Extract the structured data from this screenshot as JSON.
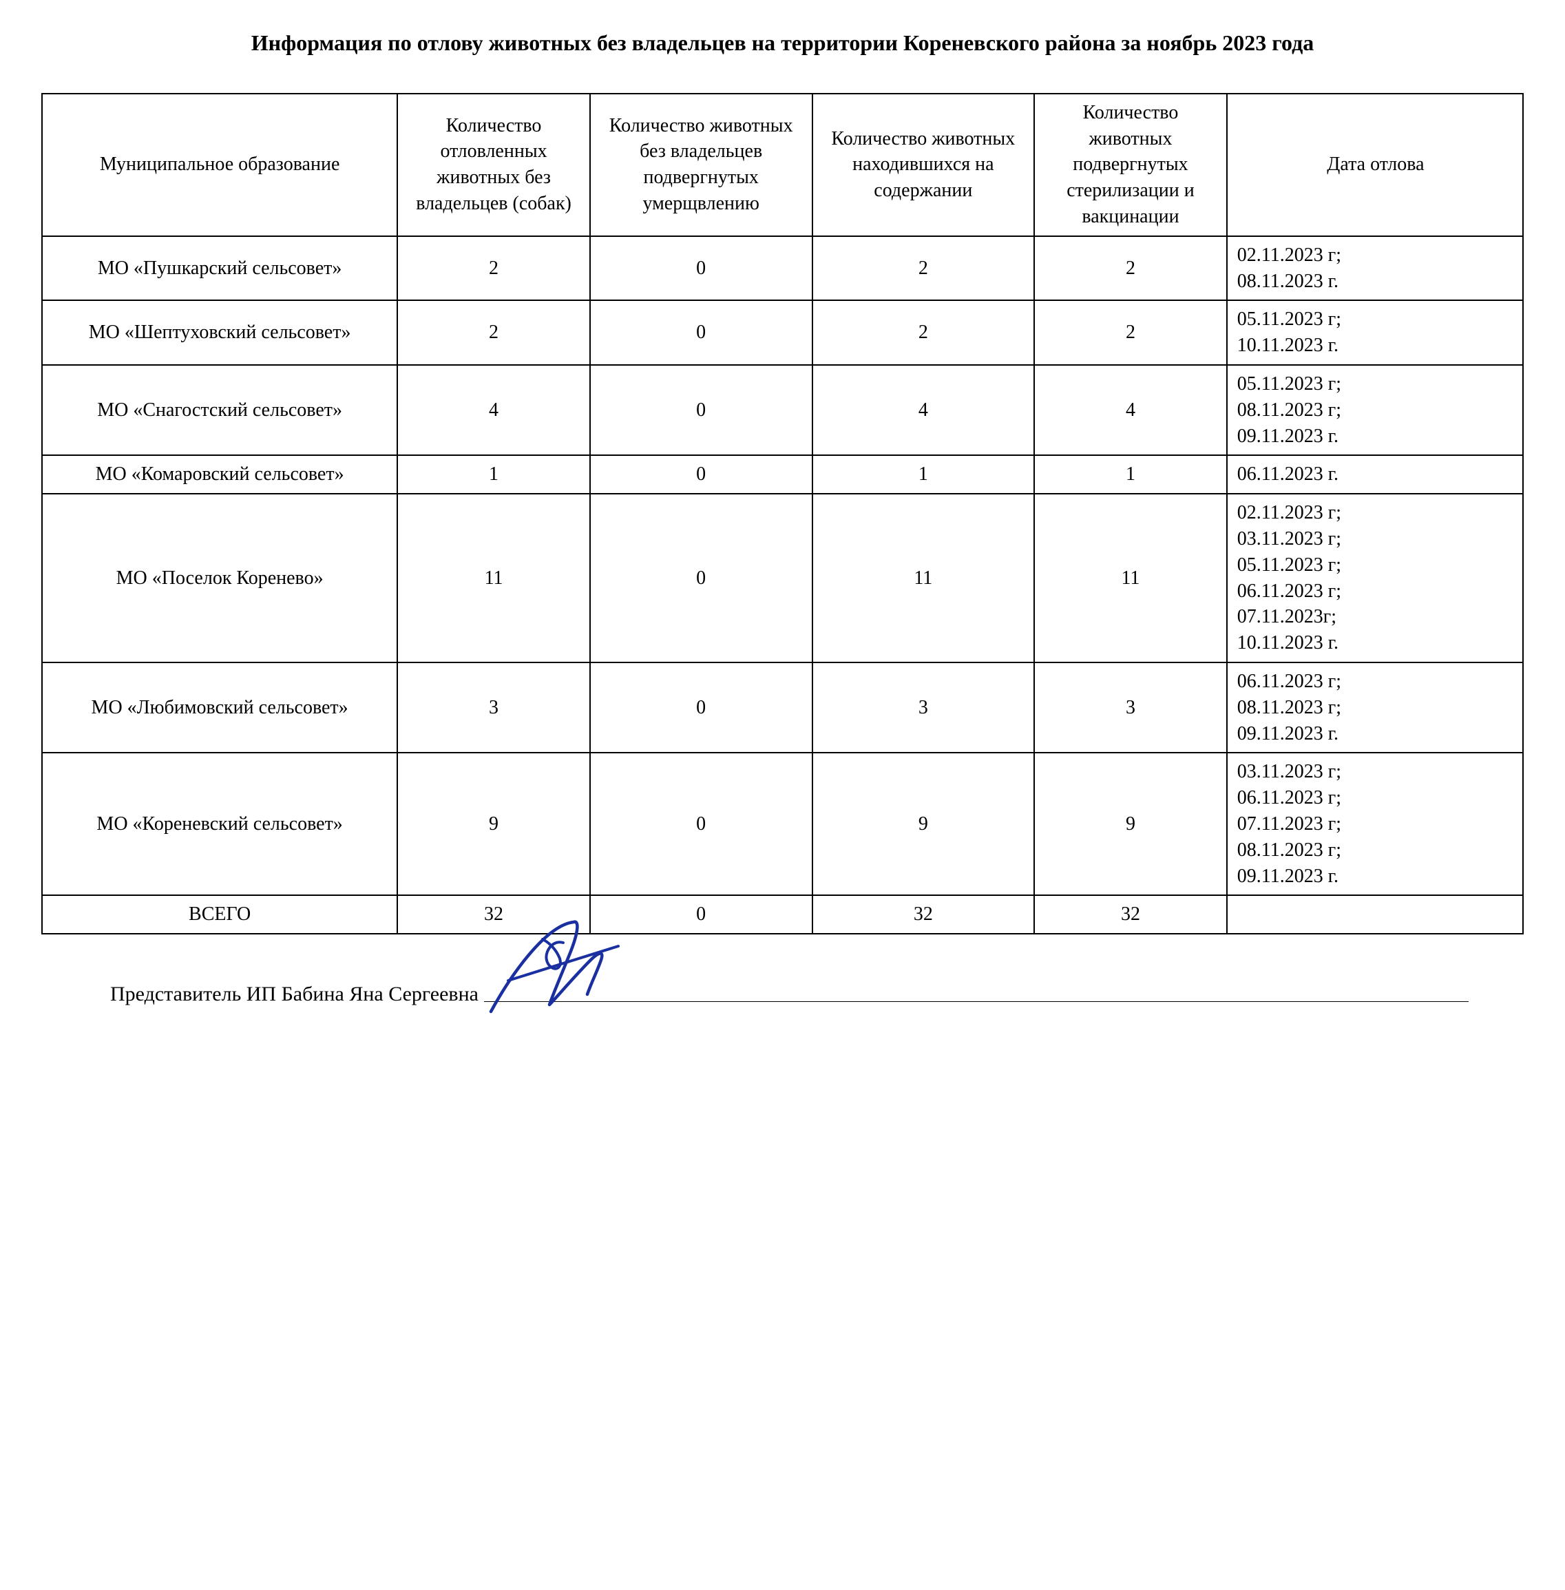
{
  "title": "Информация по отлову животных без владельцев на территории Кореневского района за ноябрь 2023 года",
  "table": {
    "columns": [
      "Муниципальное образование",
      "Количество отловленных животных без владельцев (собак)",
      "Количество животных  без владельцев подвергнутых умерщвлению",
      "Количество животных находившихся на содержании",
      "Количество животных подвергнутых стерилизации и вакцинации",
      "Дата отлова"
    ],
    "rows": [
      {
        "municipality": "МО «Пушкарский сельсовет»",
        "caught": "2",
        "euthanized": "0",
        "maintained": "2",
        "sterilized": "2",
        "date": "02.11.2023 г; 08.11.2023 г."
      },
      {
        "municipality": "МО «Шептуховский сельсовет»",
        "caught": "2",
        "euthanized": "0",
        "maintained": "2",
        "sterilized": "2",
        "date": "05.11.2023 г; 10.11.2023 г."
      },
      {
        "municipality": "МО «Снагостский сельсовет»",
        "caught": "4",
        "euthanized": "0",
        "maintained": "4",
        "sterilized": "4",
        "date": "05.11.2023 г; 08.11.2023 г; 09.11.2023 г."
      },
      {
        "municipality": "МО «Комаровский сельсовет»",
        "caught": "1",
        "euthanized": "0",
        "maintained": "1",
        "sterilized": "1",
        "date": "06.11.2023 г."
      },
      {
        "municipality": "МО «Поселок Коренево»",
        "caught": "11",
        "euthanized": "0",
        "maintained": "11",
        "sterilized": "11",
        "date": "02.11.2023 г; 03.11.2023 г; 05.11.2023 г; 06.11.2023 г; 07.11.2023г; 10.11.2023 г."
      },
      {
        "municipality": "МО «Любимовский сельсовет»",
        "caught": "3",
        "euthanized": "0",
        "maintained": "3",
        "sterilized": "3",
        "date": "06.11.2023 г; 08.11.2023 г; 09.11.2023 г."
      },
      {
        "municipality": "МО «Кореневский сельсовет»",
        "caught": "9",
        "euthanized": "0",
        "maintained": "9",
        "sterilized": "9",
        "date": "03.11.2023 г; 06.11.2023 г; 07.11.2023 г; 08.11.2023 г; 09.11.2023 г."
      }
    ],
    "total_row": {
      "label": "ВСЕГО",
      "caught": "32",
      "euthanized": "0",
      "maintained": "32",
      "sterilized": "32",
      "date": ""
    }
  },
  "signature": {
    "text": "Представитель ИП Бабина Яна Сергеевна",
    "stroke_color": "#1a2fa0"
  },
  "styles": {
    "background_color": "#ffffff",
    "text_color": "#000000",
    "border_color": "#000000",
    "title_fontsize": 32,
    "cell_fontsize": 28,
    "signature_fontsize": 30,
    "font_family": "Times New Roman"
  }
}
